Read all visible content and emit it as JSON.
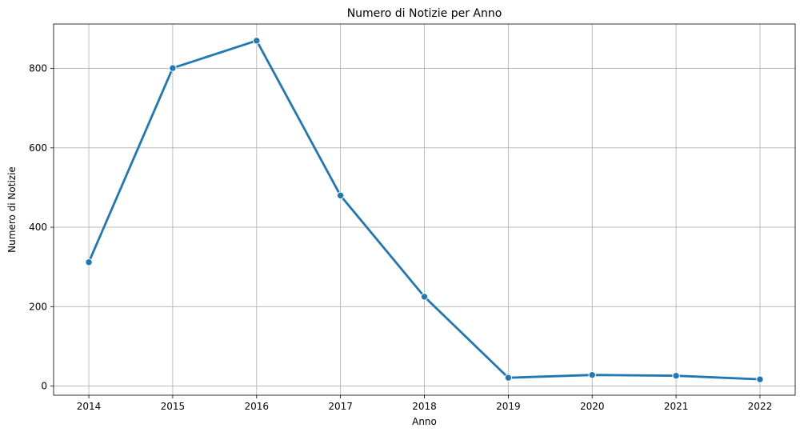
{
  "chart_data": {
    "type": "line",
    "title": "Numero di Notizie per Anno",
    "xlabel": "Anno",
    "ylabel": "Numero di Notizie",
    "x": [
      2014,
      2015,
      2016,
      2017,
      2018,
      2019,
      2020,
      2021,
      2022
    ],
    "series": [
      {
        "values": [
          312,
          801,
          870,
          480,
          225,
          21,
          28,
          26,
          17
        ]
      }
    ],
    "xlim": [
      2013.58,
      2022.42
    ],
    "ylim": [
      -23,
      912
    ],
    "xticks": [
      2014,
      2015,
      2016,
      2017,
      2018,
      2019,
      2020,
      2021,
      2022
    ],
    "yticks": [
      0,
      200,
      400,
      600,
      800
    ],
    "grid": true,
    "line_color": "#1f77b4",
    "grid_color": "#b0b0b0"
  }
}
